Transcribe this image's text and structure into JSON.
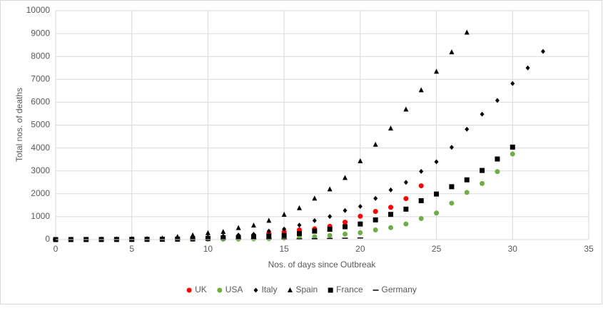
{
  "chart_data": {
    "type": "scatter",
    "xlabel": "Nos. of days since Outbreak",
    "ylabel": "Total nos. of deaths",
    "xlim": [
      0,
      35
    ],
    "xticks": [
      0,
      5,
      10,
      15,
      20,
      25,
      30,
      35
    ],
    "ylim": [
      0,
      10000
    ],
    "yticks": [
      0,
      1000,
      2000,
      3000,
      4000,
      5000,
      6000,
      7000,
      8000,
      9000,
      10000
    ],
    "grid": true,
    "legend": "bottom",
    "series": [
      {
        "name": "UK",
        "color": "#ff0000",
        "marker": "circle",
        "x": [
          0,
          1,
          2,
          3,
          4,
          5,
          6,
          7,
          8,
          9,
          10,
          11,
          12,
          13,
          14,
          15,
          16,
          17,
          18,
          19,
          20,
          21,
          22,
          23,
          24
        ],
        "values": [
          1,
          1,
          1,
          2,
          3,
          6,
          8,
          10,
          20,
          35,
          55,
          70,
          140,
          180,
          280,
          340,
          420,
          470,
          580,
          760,
          1020,
          1230,
          1410,
          1790,
          2350
        ]
      },
      {
        "name": "USA",
        "color": "#70ad47",
        "marker": "circle",
        "x": [
          0,
          1,
          2,
          3,
          4,
          5,
          6,
          7,
          8,
          9,
          10,
          11,
          12,
          13,
          14,
          15,
          16,
          17,
          18,
          19,
          20,
          21,
          22,
          23,
          24,
          25,
          26,
          27,
          28,
          29,
          30
        ],
        "values": [
          1,
          1,
          2,
          3,
          4,
          6,
          8,
          10,
          11,
          12,
          14,
          17,
          20,
          30,
          40,
          60,
          80,
          120,
          180,
          240,
          300,
          420,
          520,
          680,
          920,
          1160,
          1590,
          2060,
          2450,
          2970,
          3740
        ]
      },
      {
        "name": "Italy",
        "color": "#000000",
        "marker": "diamond",
        "x": [
          0,
          1,
          2,
          3,
          4,
          5,
          6,
          7,
          8,
          9,
          10,
          11,
          12,
          13,
          14,
          15,
          16,
          17,
          18,
          19,
          20,
          21,
          22,
          23,
          24,
          25,
          26,
          27,
          28,
          29,
          30,
          31,
          32
        ],
        "values": [
          1,
          2,
          3,
          7,
          10,
          12,
          20,
          30,
          50,
          80,
          110,
          150,
          200,
          230,
          370,
          460,
          630,
          830,
          1010,
          1270,
          1450,
          1800,
          2170,
          2500,
          2980,
          3400,
          4030,
          4820,
          5480,
          6080,
          6820,
          7500,
          8220
        ]
      },
      {
        "name": "Spain",
        "color": "#000000",
        "marker": "triangle",
        "x": [
          0,
          1,
          2,
          3,
          4,
          5,
          6,
          7,
          8,
          9,
          10,
          11,
          12,
          13,
          14,
          15,
          16,
          17,
          18,
          19,
          20,
          21,
          22,
          23,
          24,
          25,
          26,
          27
        ],
        "values": [
          1,
          3,
          5,
          10,
          20,
          30,
          40,
          60,
          120,
          190,
          290,
          340,
          510,
          620,
          830,
          1090,
          1380,
          1800,
          2200,
          2700,
          3430,
          4150,
          4860,
          5690,
          6530,
          7340,
          8190,
          9050
        ]
      },
      {
        "name": "France",
        "color": "#000000",
        "marker": "square",
        "x": [
          0,
          1,
          2,
          3,
          4,
          5,
          6,
          7,
          8,
          9,
          10,
          11,
          12,
          13,
          14,
          15,
          16,
          17,
          18,
          19,
          20,
          21,
          22,
          23,
          24,
          25,
          26,
          27,
          28,
          29,
          30
        ],
        "values": [
          1,
          2,
          3,
          4,
          6,
          9,
          11,
          15,
          20,
          30,
          50,
          80,
          90,
          120,
          150,
          180,
          260,
          370,
          450,
          560,
          680,
          860,
          1100,
          1330,
          1700,
          1990,
          2310,
          2610,
          3020,
          3520,
          4040
        ]
      },
      {
        "name": "Germany",
        "color": "#000000",
        "marker": "dash",
        "x": [
          0,
          1,
          2,
          3,
          4,
          5,
          6,
          7,
          8,
          9,
          10,
          11,
          12,
          13,
          14,
          15,
          16,
          17,
          18,
          19,
          20
        ],
        "values": [
          1,
          1,
          2,
          2,
          3,
          3,
          4,
          5,
          6,
          7,
          9,
          11,
          13,
          16,
          20,
          25,
          30,
          40,
          50,
          60,
          70
        ]
      }
    ]
  }
}
